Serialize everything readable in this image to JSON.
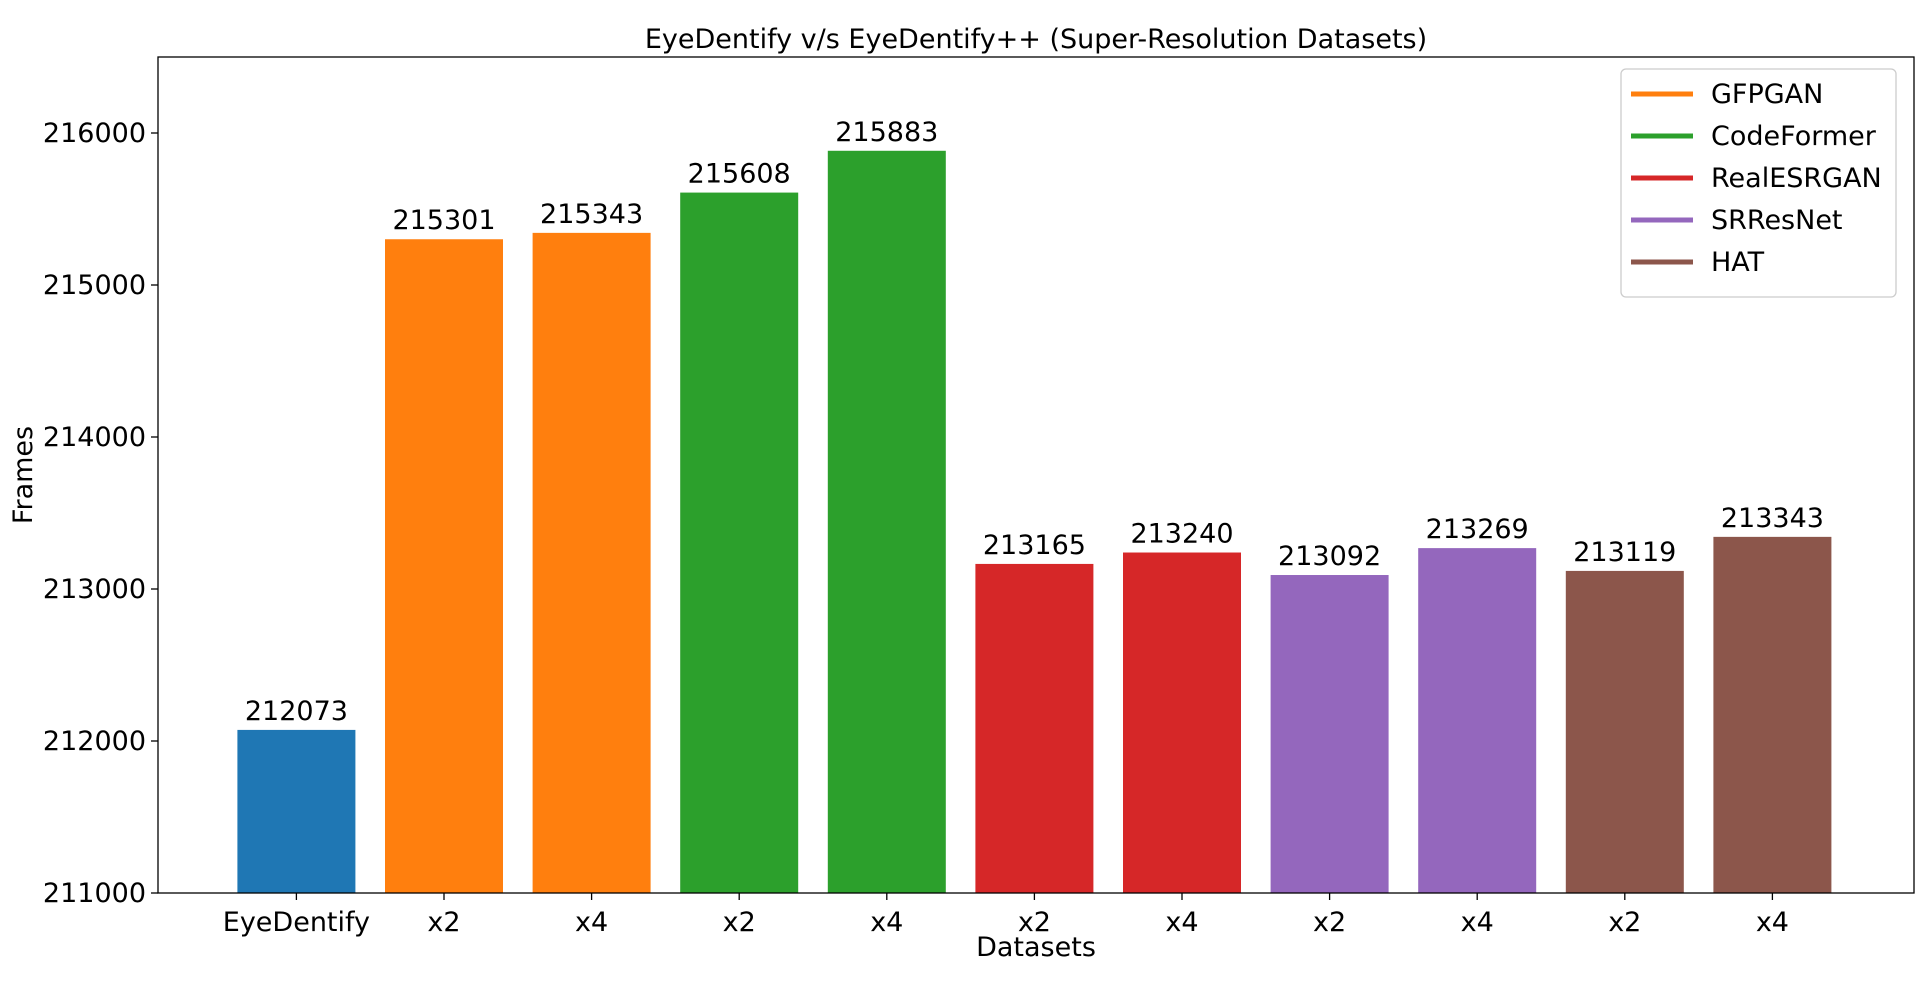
{
  "chart_data": {
    "type": "bar",
    "title": "EyeDentify v/s EyeDentify++ (Super-Resolution Datasets)",
    "xlabel": "Datasets",
    "ylabel": "Frames",
    "ylim": [
      211000,
      216500
    ],
    "yticks": [
      211000,
      212000,
      213000,
      214000,
      215000,
      216000
    ],
    "categories": [
      "EyeDentify",
      "x2",
      "x4",
      "x2",
      "x4",
      "x2",
      "x4",
      "x2",
      "x4",
      "x2",
      "x4"
    ],
    "values": [
      212073,
      215301,
      215343,
      215608,
      215883,
      213165,
      213240,
      213092,
      213269,
      213119,
      213343
    ],
    "bar_colors": [
      "#1f77b4",
      "#ff7f0e",
      "#ff7f0e",
      "#2ca02c",
      "#2ca02c",
      "#d62728",
      "#d62728",
      "#9467bd",
      "#9467bd",
      "#8c564b",
      "#8c564b"
    ],
    "grid": false,
    "legend_position": "top-right",
    "legend": [
      {
        "name": "GFPGAN",
        "color": "#ff7f0e"
      },
      {
        "name": "CodeFormer",
        "color": "#2ca02c"
      },
      {
        "name": "RealESRGAN",
        "color": "#d62728"
      },
      {
        "name": "SRResNet",
        "color": "#9467bd"
      },
      {
        "name": "HAT",
        "color": "#8c564b"
      }
    ]
  }
}
